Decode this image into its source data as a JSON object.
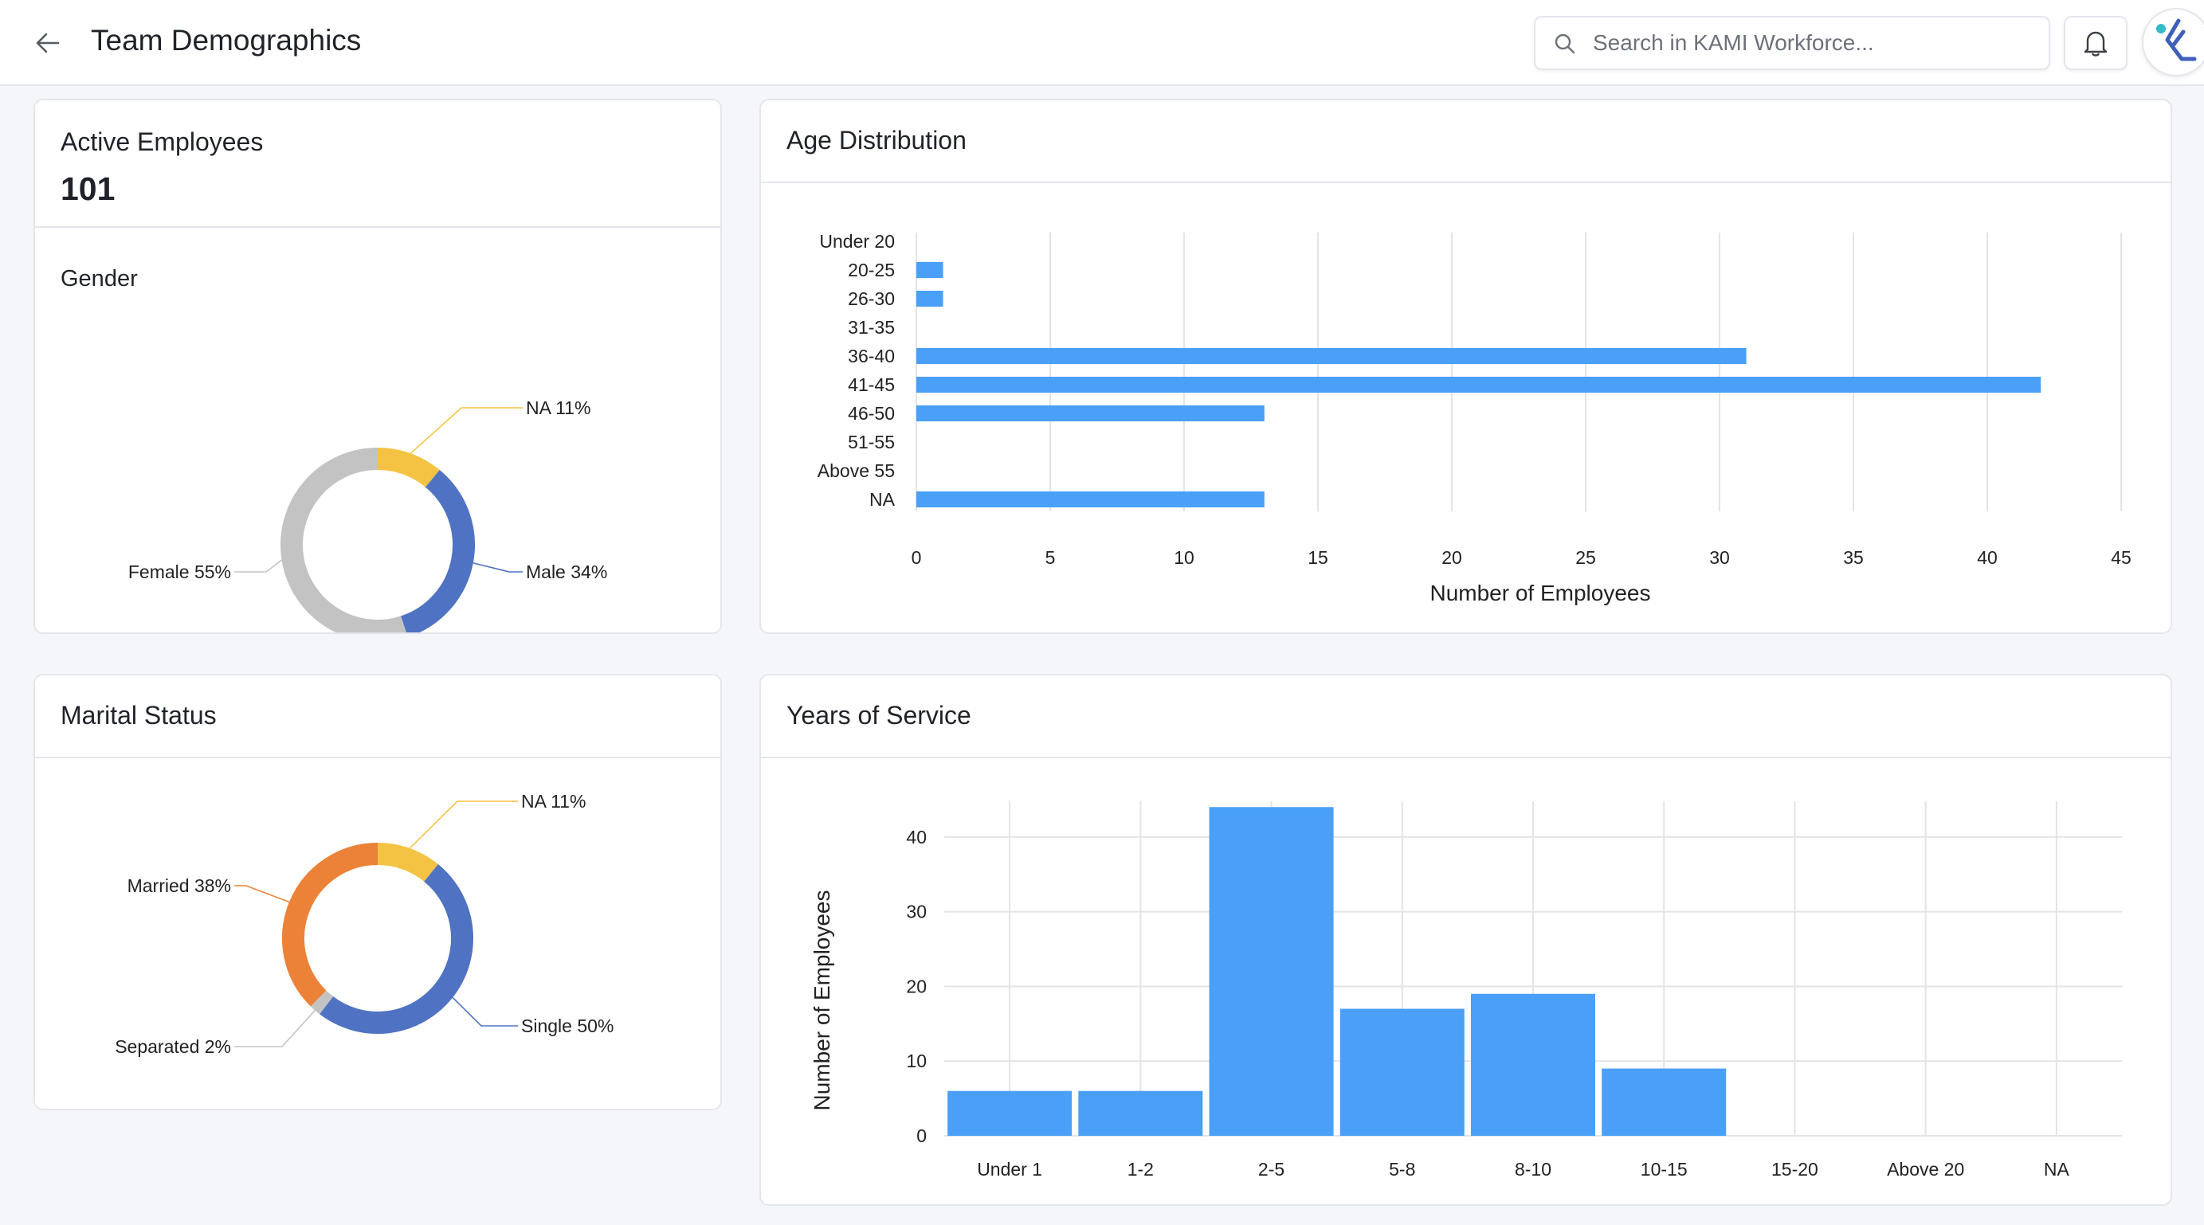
{
  "header": {
    "title": "Team Demographics",
    "search_placeholder": "Search in KAMI Workforce..."
  },
  "colors": {
    "accent_blue": "#4a9ff7",
    "male": "#4f73c2",
    "female": "#c3c3c3",
    "na": "#f5c343",
    "married": "#ec8237",
    "separated": "#c3c3c3",
    "single": "#4f73c2"
  },
  "icons": [
    "back-arrow-icon",
    "search-icon",
    "bell-icon",
    "kami-logo-icon"
  ],
  "active_employees": {
    "label": "Active Employees",
    "count": "101",
    "gender_title": "Gender"
  },
  "marital": {
    "title": "Marital Status"
  },
  "age": {
    "title": "Age Distribution"
  },
  "service": {
    "title": "Years of Service"
  },
  "chart_data": [
    {
      "id": "gender",
      "type": "pie",
      "donut": true,
      "title": "Gender",
      "slices": [
        {
          "label": "NA",
          "value": 11,
          "display": "NA 11%",
          "color": "#f5c343"
        },
        {
          "label": "Male",
          "value": 34,
          "display": "Male 34%",
          "color": "#4f73c2"
        },
        {
          "label": "Female",
          "value": 55,
          "display": "Female 55%",
          "color": "#c3c3c3"
        }
      ]
    },
    {
      "id": "marital",
      "type": "pie",
      "donut": true,
      "title": "Marital Status",
      "slices": [
        {
          "label": "NA",
          "value": 11,
          "display": "NA 11%",
          "color": "#f5c343"
        },
        {
          "label": "Single",
          "value": 50,
          "display": "Single 50%",
          "color": "#4f73c2"
        },
        {
          "label": "Separated",
          "value": 2,
          "display": "Separated 2%",
          "color": "#c3c3c3"
        },
        {
          "label": "Married",
          "value": 38,
          "display": "Married 38%",
          "color": "#ec8237"
        }
      ]
    },
    {
      "id": "age",
      "type": "bar",
      "orientation": "horizontal",
      "title": "Age Distribution",
      "categories": [
        "Under 20",
        "20-25",
        "26-30",
        "31-35",
        "36-40",
        "41-45",
        "46-50",
        "51-55",
        "Above 55",
        "NA"
      ],
      "values": [
        0,
        1,
        1,
        0,
        31,
        42,
        13,
        0,
        0,
        13
      ],
      "xlabel": "Number of Employees",
      "xlim": [
        0,
        45
      ],
      "xticks": [
        0,
        5,
        10,
        15,
        20,
        25,
        30,
        35,
        40,
        45
      ],
      "grid": true,
      "color": "#4a9ff7"
    },
    {
      "id": "service",
      "type": "bar",
      "orientation": "vertical",
      "title": "Years of Service",
      "categories": [
        "Under 1",
        "1-2",
        "2-5",
        "5-8",
        "8-10",
        "10-15",
        "15-20",
        "Above 20",
        "NA"
      ],
      "values": [
        6,
        6,
        44,
        17,
        19,
        9,
        0,
        0,
        0
      ],
      "ylabel": "Number of Employees",
      "ylim": [
        0,
        45
      ],
      "yticks": [
        0,
        10,
        20,
        30,
        40
      ],
      "grid": true,
      "color": "#4a9ff7"
    }
  ]
}
